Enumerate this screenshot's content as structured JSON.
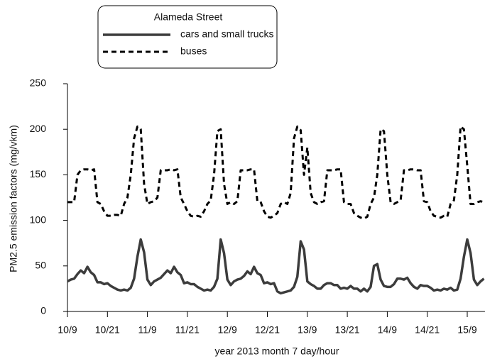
{
  "chart_data": {
    "type": "line",
    "legend_title": "Alameda Street",
    "x_label": "year 2013 month 7 day/hour",
    "y_label": "PM2.5 emission factors (mg/vkm)",
    "x": [
      0,
      1,
      2,
      3,
      4,
      5,
      6,
      7,
      8,
      9,
      10,
      11,
      12,
      13,
      14,
      15,
      16,
      17,
      18,
      19,
      20,
      21,
      22,
      23,
      24,
      25,
      26,
      27,
      28,
      29,
      30,
      31,
      32,
      33,
      34,
      35,
      36,
      37,
      38,
      39,
      40,
      41,
      42,
      43,
      44,
      45,
      46,
      47,
      48,
      49,
      50,
      51,
      52,
      53,
      54,
      55,
      56,
      57,
      58,
      59,
      60,
      61,
      62,
      63,
      64,
      65,
      66,
      67,
      68,
      69,
      70,
      71,
      72,
      73,
      74,
      75,
      76,
      77,
      78,
      79,
      80,
      81,
      82,
      83,
      84,
      85,
      86,
      87,
      88,
      89,
      90,
      91,
      92,
      93,
      94,
      95,
      96,
      97,
      98,
      99,
      100,
      101,
      102,
      103,
      104,
      105,
      106,
      107,
      108,
      109,
      110,
      111,
      112,
      113,
      114,
      115,
      116,
      117,
      118,
      119,
      120,
      121,
      122,
      123,
      124,
      125
    ],
    "series": [
      {
        "name": "cars and small trucks",
        "color": "#3c3c3c",
        "dashed": false,
        "values": [
          33,
          35,
          36,
          41,
          45,
          42,
          49,
          43,
          40,
          32,
          32,
          30,
          31,
          28,
          26,
          24,
          23,
          24,
          23,
          26,
          36,
          60,
          79,
          65,
          35,
          29,
          33,
          35,
          37,
          41,
          45,
          42,
          49,
          43,
          40,
          31,
          32,
          30,
          30,
          27,
          25,
          23,
          24,
          23,
          27,
          36,
          79,
          64,
          35,
          29,
          33,
          35,
          36,
          39,
          44,
          41,
          49,
          42,
          40,
          31,
          32,
          30,
          31,
          22,
          20,
          21,
          22,
          23,
          27,
          38,
          77,
          68,
          33,
          30,
          28,
          25,
          25,
          29,
          31,
          31,
          29,
          29,
          25,
          26,
          25,
          28,
          25,
          25,
          22,
          25,
          22,
          27,
          50,
          52,
          35,
          28,
          27,
          27,
          30,
          36,
          36,
          35,
          37,
          31,
          27,
          25,
          29,
          28,
          28,
          26,
          23,
          24,
          23,
          25,
          24,
          26,
          23,
          24,
          36,
          60,
          79,
          64,
          35,
          29,
          33,
          36
        ]
      },
      {
        "name": "buses",
        "color": "#000000",
        "dashed": true,
        "values": [
          120,
          120,
          120,
          150,
          155,
          156,
          156,
          155,
          156,
          120,
          118,
          110,
          105,
          105,
          106,
          106,
          105,
          118,
          125,
          150,
          190,
          203,
          200,
          140,
          118,
          120,
          121,
          125,
          155,
          155,
          155,
          156,
          155,
          156,
          125,
          118,
          110,
          105,
          104,
          105,
          104,
          110,
          118,
          122,
          150,
          198,
          200,
          140,
          118,
          120,
          118,
          121,
          155,
          155,
          155,
          156,
          156,
          121,
          120,
          110,
          104,
          103,
          105,
          108,
          118,
          120,
          118,
          130,
          190,
          203,
          199,
          150,
          180,
          130,
          120,
          118,
          120,
          121,
          155,
          155,
          155,
          156,
          156,
          120,
          118,
          118,
          108,
          105,
          103,
          102,
          104,
          118,
          125,
          150,
          200,
          198,
          150,
          120,
          118,
          120,
          122,
          155,
          155,
          156,
          156,
          155,
          155,
          121,
          120,
          110,
          105,
          104,
          103,
          105,
          104,
          118,
          122,
          150,
          203,
          200,
          160,
          118,
          118,
          120,
          121,
          120
        ]
      }
    ],
    "xlim": [
      0,
      125
    ],
    "xticks": [
      {
        "value": 0,
        "label": "10/9"
      },
      {
        "value": 12,
        "label": "10/21"
      },
      {
        "value": 24,
        "label": "11/9"
      },
      {
        "value": 36,
        "label": "11/21"
      },
      {
        "value": 48,
        "label": "12/9"
      },
      {
        "value": 60,
        "label": "12/21"
      },
      {
        "value": 72,
        "label": "13/9"
      },
      {
        "value": 84,
        "label": "13/21"
      },
      {
        "value": 96,
        "label": "14/9"
      },
      {
        "value": 108,
        "label": "14/21"
      },
      {
        "value": 120,
        "label": "15/9"
      }
    ],
    "ylim": [
      0,
      250
    ],
    "yticks": [
      0,
      50,
      100,
      150,
      200,
      250
    ],
    "grid": false
  }
}
